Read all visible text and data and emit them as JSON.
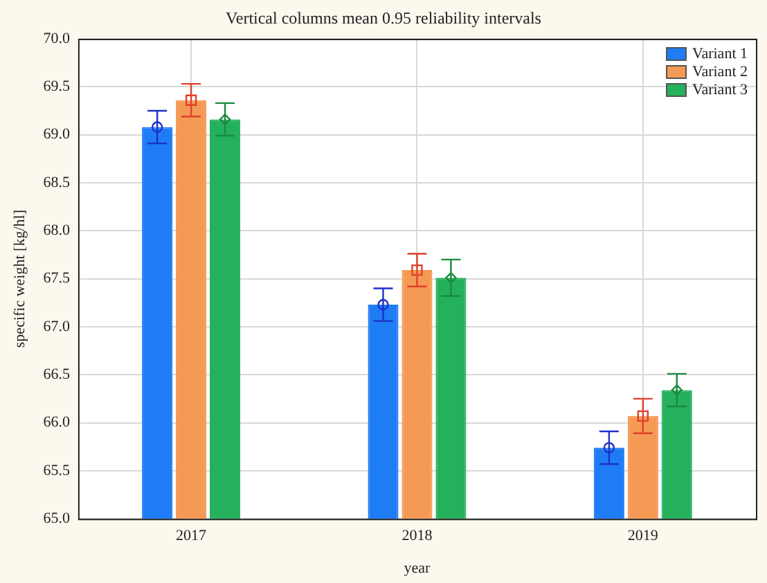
{
  "chart_data": {
    "type": "bar",
    "title": "Vertical columns mean 0.95 reliability intervals",
    "xlabel": "year",
    "ylabel": "specific weight [kg/hl]",
    "categories": [
      "2017",
      "2018",
      "2019"
    ],
    "series": [
      {
        "name": "Variant 1",
        "color": "#1e7cf5",
        "values": [
          69.08,
          67.23,
          65.74
        ]
      },
      {
        "name": "Variant 2",
        "color": "#f59a55",
        "values": [
          69.36,
          67.59,
          66.07
        ]
      },
      {
        "name": "Variant 3",
        "color": "#25b05c",
        "values": [
          69.16,
          67.51,
          66.34
        ]
      },
      {
        "type": "scatter",
        "color": "#1f2fc8",
        "marker": "circle",
        "values": [
          69.08,
          67.23,
          65.74
        ],
        "errors": [
          0.17,
          0.17,
          0.17
        ]
      },
      {
        "type": "scatter",
        "color": "#e0402a",
        "marker": "square",
        "values": [
          69.36,
          67.59,
          66.07
        ],
        "errors": [
          0.17,
          0.17,
          0.18
        ]
      },
      {
        "type": "scatter",
        "color": "#1a8a3e",
        "marker": "diamond",
        "values": [
          69.16,
          67.51,
          66.34
        ],
        "errors": [
          0.17,
          0.19,
          0.17
        ]
      }
    ],
    "ylim": [
      65.0,
      70.0
    ],
    "yticks": [
      {
        "value": 65,
        "label": "65.0"
      },
      {
        "value": 65.5,
        "label": "65.5"
      },
      {
        "value": 66,
        "label": "66.0"
      },
      {
        "value": 66.5,
        "label": "66.5"
      },
      {
        "value": 67,
        "label": "67.0"
      },
      {
        "value": 67.5,
        "label": "67.5"
      },
      {
        "value": 68,
        "label": "68.0"
      },
      {
        "value": 68.5,
        "label": "68.5"
      },
      {
        "value": 69,
        "label": "69.0"
      },
      {
        "value": 69.5,
        "label": "69.5"
      },
      {
        "value": 70,
        "label": "70.0"
      }
    ],
    "grid": true,
    "legend": "top right"
  }
}
